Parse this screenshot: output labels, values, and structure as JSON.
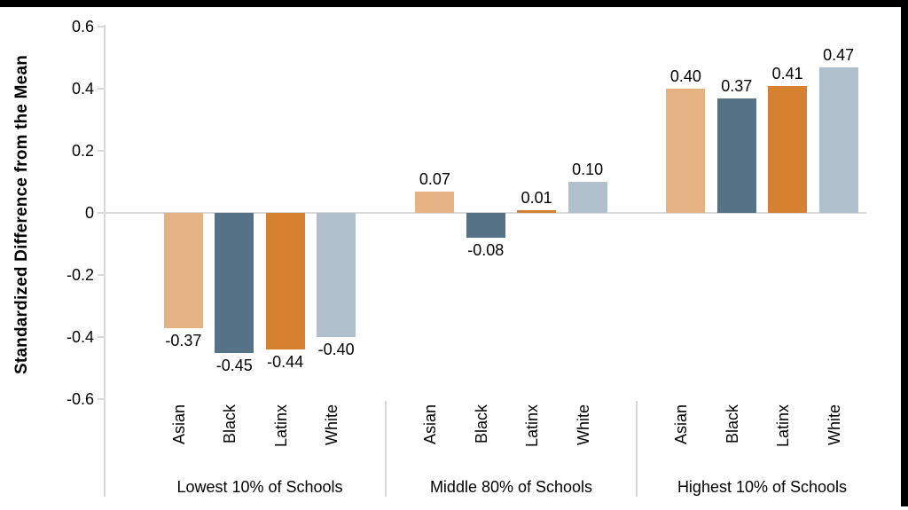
{
  "frame": {
    "border_color": "#000000",
    "background_color": "#ffffff"
  },
  "chart_data": {
    "type": "bar",
    "title": "",
    "xlabel": "",
    "ylabel": "Standardized Difference from the Mean",
    "ylim": [
      -0.6,
      0.6
    ],
    "yticks": [
      0.6,
      0.4,
      0.2,
      0,
      -0.2,
      -0.4,
      -0.6
    ],
    "ytick_labels": [
      "0.6",
      "0.4",
      "0.2",
      "0",
      "-0.2",
      "-0.4",
      "-0.6"
    ],
    "grid": "zero-baseline-only",
    "legend": "none",
    "categories": [
      "Asian",
      "Black",
      "Latinx",
      "White"
    ],
    "groups": [
      {
        "label": "Lowest 10% of Schools",
        "values": [
          -0.37,
          -0.45,
          -0.44,
          -0.4
        ],
        "value_labels": [
          "-0.37",
          "-0.45",
          "-0.44",
          "-0.40"
        ]
      },
      {
        "label": "Middle 80% of Schools",
        "values": [
          0.07,
          -0.08,
          0.01,
          0.1
        ],
        "value_labels": [
          "0.07",
          "-0.08",
          "0.01",
          "0.10"
        ]
      },
      {
        "label": "Highest 10% of Schools",
        "values": [
          0.4,
          0.37,
          0.41,
          0.47
        ],
        "value_labels": [
          "0.40",
          "0.37",
          "0.41",
          "0.47"
        ]
      }
    ],
    "category_colors": {
      "Asian": "#E4B283",
      "Black": "#567287",
      "Latinx": "#D6812F",
      "White": "#B0C1CD"
    },
    "axis_color": "#D9D9D9",
    "text_color": "#000000"
  }
}
